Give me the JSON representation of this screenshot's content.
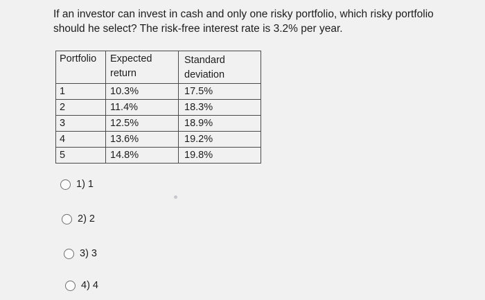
{
  "question": {
    "line1": "If an investor can invest in cash and only one risky portfolio, which risky portfolio",
    "line2": "should he select? The risk-free interest rate is 3.2% per year."
  },
  "table": {
    "headers": {
      "portfolio": "Portfolio",
      "expected_line1": "Expected",
      "expected_line2": "return",
      "sd_line1": "Standard",
      "sd_line2": "deviation"
    },
    "rows": [
      {
        "portfolio": "1",
        "expected": "10.3%",
        "sd": "17.5%"
      },
      {
        "portfolio": "2",
        "expected": "11.4%",
        "sd": "18.3%"
      },
      {
        "portfolio": "3",
        "expected": "12.5%",
        "sd": "18.9%"
      },
      {
        "portfolio": "4",
        "expected": "13.6%",
        "sd": "19.2%"
      },
      {
        "portfolio": "5",
        "expected": "14.8%",
        "sd": "19.8%"
      }
    ]
  },
  "options": [
    {
      "label": "1) 1"
    },
    {
      "label": "2) 2"
    },
    {
      "label": "3) 3"
    },
    {
      "label": "4) 4"
    }
  ]
}
